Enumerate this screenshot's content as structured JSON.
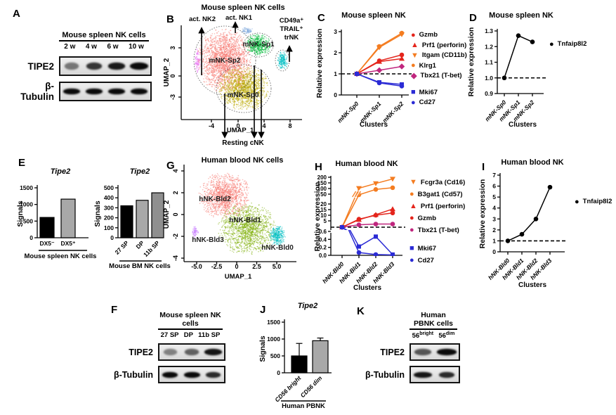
{
  "panels": {
    "A": {
      "label": "A",
      "blot": {
        "header": "Mouse spleen NK cells",
        "lanes": [
          "2 w",
          "4 w",
          "6 w",
          "10 w"
        ],
        "rows": [
          {
            "label": "TIPE2",
            "intensities": [
              0.5,
              0.8,
              0.92,
              1
            ],
            "widths": [
              0.6,
              0.7,
              0.78,
              0.8
            ]
          },
          {
            "label": "β-Tubulin",
            "intensities": [
              1,
              1,
              1,
              1
            ],
            "widths": [
              0.72,
              0.72,
              0.72,
              0.72
            ]
          }
        ]
      }
    },
    "B": {
      "label": "B",
      "title": "Mouse spleen NK cells",
      "xlabel": "UMAP_1",
      "ylabel": "UMAP_2",
      "xticks": [
        "-4",
        "0",
        "4",
        "8"
      ],
      "yticks": [
        "3",
        "0",
        "-3"
      ],
      "clusters": [
        {
          "name": "mNK-Sp2",
          "color": "#F8766D"
        },
        {
          "name": "mNK-Sp1",
          "color": "#00BA38"
        },
        {
          "name": "mNK-Sp0",
          "color": "#BBA900"
        },
        {
          "name": "trNK",
          "color": "#00BFC4"
        },
        {
          "name": "act. NK2",
          "color": "#E76BF3"
        },
        {
          "name": "act. NK1",
          "color": "#7AA6DC"
        }
      ],
      "annotations": {
        "top_left": "act. NK2",
        "top": "act. NK1",
        "right": [
          "CD49a⁺",
          "TRAIL⁺",
          "trNK"
        ],
        "bottom": "Resting cNK"
      }
    },
    "C": {
      "label": "C",
      "chart_data": {
        "type": "line",
        "title": "Mouse spleen NK",
        "ylabel": "Relative expression",
        "xlabel": "Clusters",
        "categories": [
          "mNK-Sp0",
          "mNK-Sp1",
          "mNK-Sp2"
        ],
        "yticks": [
          "0",
          "1",
          "2",
          "3"
        ],
        "ylim": [
          0,
          3
        ],
        "dashed_at": 1,
        "series": [
          {
            "name": "Gzmb",
            "color": "#E4251C",
            "marker": "circle",
            "values": [
              1,
              1.62,
              1.9
            ]
          },
          {
            "name": "Prf1 (perforin)",
            "color": "#E4251C",
            "marker": "triangle",
            "values": [
              1,
              1.58,
              1.72
            ]
          },
          {
            "name": "Itgam (CD11b)",
            "color": "#F47C20",
            "marker": "triangle-down",
            "values": [
              1,
              2.25,
              2.87
            ]
          },
          {
            "name": "Klrg1",
            "color": "#F47C20",
            "marker": "circle",
            "values": [
              1,
              2.3,
              2.93
            ]
          },
          {
            "name": "Tbx21 (T-bet)",
            "color": "#C0267E",
            "marker": "diamond",
            "values": [
              1,
              1.17,
              1.35
            ]
          },
          {
            "name": "Mki67",
            "color": "#2B2BD5",
            "marker": "square",
            "values": [
              1,
              0.6,
              0.5
            ]
          },
          {
            "name": "Cd27",
            "color": "#2B2BD5",
            "marker": "circle",
            "values": [
              1,
              0.57,
              0.42
            ]
          }
        ]
      }
    },
    "D": {
      "label": "D",
      "chart_data": {
        "type": "line",
        "title": "Mouse spleen NK",
        "ylabel": "Relative expression",
        "xlabel": "Clusters",
        "categories": [
          "mNK-Sp0",
          "mNK-Sp1",
          "mNK-Sp2"
        ],
        "yticks": [
          "0.9",
          "1.0",
          "1.1",
          "1.2",
          "1.3"
        ],
        "ylim": [
          0.9,
          1.3
        ],
        "dashed_at": 1.0,
        "series": [
          {
            "name": "Tnfaip8l2",
            "color": "#000000",
            "marker": "circle",
            "values": [
              1.0,
              1.27,
              1.23
            ]
          }
        ]
      }
    },
    "E": {
      "label": "E",
      "charts": [
        {
          "type": "bar",
          "title": "Tipe2",
          "ylabel": "Signals",
          "yticks": [
            "0",
            "500",
            "1000",
            "1500"
          ],
          "ymax": 1500,
          "categories": [
            "DX5⁻",
            "DX5⁺"
          ],
          "values": [
            610,
            1160
          ],
          "colors": [
            "#000000",
            "#A8A8A8"
          ],
          "group_label": "Mouse spleen NK cells"
        },
        {
          "type": "bar",
          "title": "Tipe2",
          "ylabel": "Signals",
          "yticks": [
            "0",
            "100",
            "200",
            "300",
            "400",
            "500"
          ],
          "ymax": 500,
          "categories": [
            "27 SP",
            "DP",
            "11b SP"
          ],
          "values": [
            320,
            375,
            450
          ],
          "colors": [
            "#000000",
            "#A8A8A8",
            "#8F8F8F"
          ],
          "group_label": "Mouse BM NK cells"
        }
      ]
    },
    "F": {
      "label": "F",
      "blot": {
        "header": "Mouse spleen NK cells",
        "lanes": [
          "27 SP",
          "DP",
          "11b SP"
        ],
        "rows": [
          {
            "label": "TIPE2",
            "intensities": [
              0.45,
              0.6,
              0.95
            ],
            "widths": [
              0.6,
              0.68,
              0.8
            ]
          },
          {
            "label": "β-Tubulin",
            "intensities": [
              1,
              1,
              0.85
            ],
            "widths": [
              0.72,
              0.75,
              0.68
            ]
          }
        ]
      }
    },
    "G": {
      "label": "G",
      "title": "Human blood NK cells",
      "xlabel": "UMAP_1",
      "ylabel": "UMAP_2",
      "xticks": [
        "-5.0",
        "-2.5",
        "0",
        "2.5",
        "5.0"
      ],
      "yticks": [
        "4",
        "2",
        "0",
        "-2",
        "-4"
      ],
      "clusters": [
        {
          "name": "hNK-Bld2",
          "color": "#F8766D"
        },
        {
          "name": "hNK-Bld1",
          "color": "#7CAE00"
        },
        {
          "name": "hNK-Bld3",
          "color": "#C77CFF"
        },
        {
          "name": "hNK-Bld0",
          "color": "#00BFC4"
        }
      ]
    },
    "H": {
      "label": "H",
      "chart_data": {
        "type": "line",
        "title": "Human blood NK",
        "ylabel": "Relative expression",
        "xlabel": "Clusters",
        "categories": [
          "hNK-Bld0",
          "hNK-Bld1",
          "hNK-Bld2",
          "hNK-Bld3"
        ],
        "yticks_upper": [
          "200",
          "150",
          "100",
          "50",
          "20",
          "15",
          "10",
          "5"
        ],
        "yticks_lower": [
          "0.6",
          "0.4",
          "0.2",
          "0.0"
        ],
        "ylim_note": "segmented axis",
        "dashed_at": 1,
        "series": [
          {
            "name": "Fcgr3a (Cd16)",
            "color": "#F47C20",
            "marker": "triangle-down",
            "values": [
              1,
              102,
              145,
              185
            ]
          },
          {
            "name": "B3gat1 (Cd57)",
            "color": "#F47C20",
            "marker": "circle",
            "values": [
              1,
              48,
              92,
              107
            ]
          },
          {
            "name": "Prf1 (perforin)",
            "color": "#E4251C",
            "marker": "triangle",
            "values": [
              1,
              6,
              10.5,
              15.5
            ]
          },
          {
            "name": "Gzmb",
            "color": "#E4251C",
            "marker": "circle",
            "values": [
              1,
              6.5,
              10,
              12
            ]
          },
          {
            "name": "Tbx21 (T-bet)",
            "color": "#C0267E",
            "marker": "circle",
            "values": [
              1,
              2.5,
              3,
              3
            ]
          },
          {
            "name": "Mki67",
            "color": "#2B2BD5",
            "marker": "square",
            "values": [
              1,
              0.22,
              0.47,
              0.02
            ]
          },
          {
            "name": "Cd27",
            "color": "#2B2BD5",
            "marker": "circle",
            "values": [
              1,
              0.07,
              0.02,
              0.01
            ]
          }
        ]
      }
    },
    "I": {
      "label": "I",
      "chart_data": {
        "type": "line",
        "title": "Human blood NK",
        "ylabel": "Relative expression",
        "xlabel": "Clusters",
        "categories": [
          "hNK-Bld0",
          "hNK-Bld1",
          "hNK-Bld2",
          "hNK-Bld3"
        ],
        "yticks": [
          "0",
          "1",
          "2",
          "3",
          "4",
          "5",
          "6",
          "7"
        ],
        "ylim": [
          0,
          7
        ],
        "dashed_at": 1,
        "series": [
          {
            "name": "Tnfaip8l2",
            "color": "#000000",
            "marker": "circle",
            "values": [
              1,
              1.6,
              3,
              5.9
            ]
          }
        ]
      }
    },
    "J": {
      "label": "J",
      "chart_data": {
        "type": "bar",
        "title": "Tipe2",
        "ylabel": "Signals",
        "yticks": [
          "0",
          "500",
          "1000",
          "1500"
        ],
        "ymax": 1500,
        "categories": [
          "CD56 bright",
          "CD56 dim"
        ],
        "values": [
          500,
          950
        ],
        "errors": [
          370,
          80
        ],
        "colors": [
          "#000000",
          "#A8A8A8"
        ],
        "group_label": "Human PBNK"
      }
    },
    "K": {
      "label": "K",
      "blot": {
        "header": "Human PBNK cells",
        "lanes": [
          {
            "base": "56",
            "sup": "bright"
          },
          {
            "base": "56",
            "sup": "dim"
          }
        ],
        "rows": [
          {
            "label": "TIPE2",
            "intensities": [
              0.65,
              1
            ],
            "widths": [
              0.68,
              0.85
            ]
          },
          {
            "label": "β-Tubulin",
            "intensities": [
              0.95,
              0.85
            ],
            "widths": [
              0.75,
              0.65
            ]
          }
        ]
      }
    }
  }
}
